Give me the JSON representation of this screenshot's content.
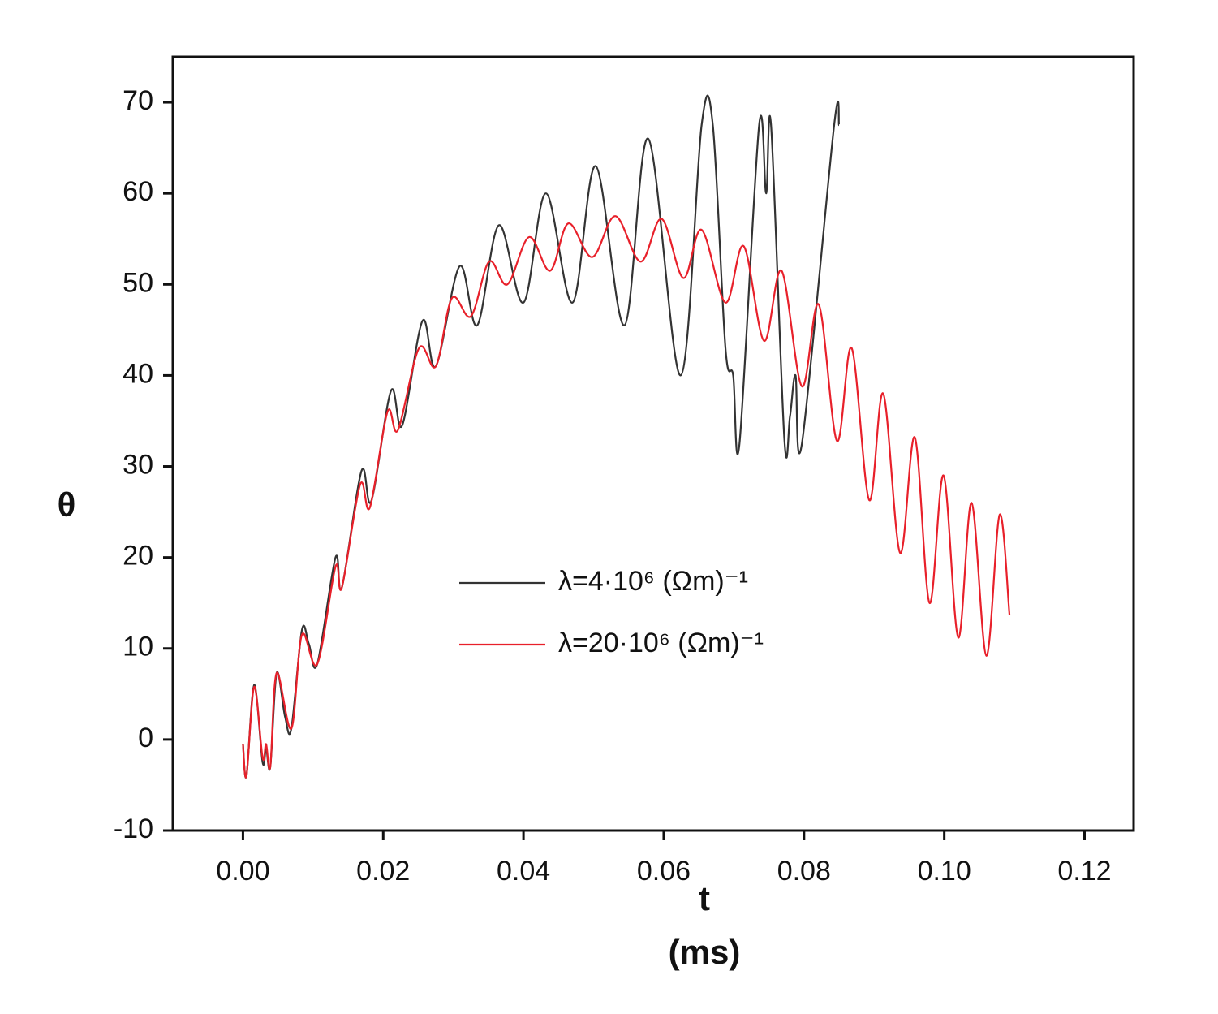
{
  "chart_data": {
    "type": "line",
    "x_label": "t",
    "x_unit": "(ms)",
    "y_label": "θ",
    "xlim": [
      -0.01,
      0.127
    ],
    "ylim": [
      -10,
      75
    ],
    "xticks": [
      {
        "value": 0,
        "label": "0.00"
      },
      {
        "value": 0.02,
        "label": "0.02"
      },
      {
        "value": 0.04,
        "label": "0.04"
      },
      {
        "value": 0.06,
        "label": "0.06"
      },
      {
        "value": 0.08,
        "label": "0.08"
      },
      {
        "value": 0.1,
        "label": "0.10"
      },
      {
        "value": 0.12,
        "label": "0.12"
      }
    ],
    "yticks": [
      -10,
      0,
      10,
      20,
      30,
      40,
      50,
      60,
      70
    ],
    "grid": false,
    "legend": "center",
    "series": [
      {
        "name": "λ=4·10⁶ (Ωm)⁻¹",
        "color": "#333333",
        "x": [
          0,
          0.0005,
          0.0016,
          0.0028,
          0.0033,
          0.0039,
          0.0048,
          0.006,
          0.0069,
          0.0084,
          0.0094,
          0.0106,
          0.0132,
          0.0141,
          0.0169,
          0.0183,
          0.0211,
          0.0227,
          0.0256,
          0.0275,
          0.0309,
          0.0334,
          0.0365,
          0.04,
          0.0432,
          0.047,
          0.0503,
          0.0544,
          0.0578,
          0.0624,
          0.0654,
          0.067,
          0.0688,
          0.0699,
          0.0708,
          0.0736,
          0.0746,
          0.0753,
          0.0772,
          0.078,
          0.0788,
          0.0797,
          0.0843,
          0.085
        ],
        "values": [
          -0.5,
          -4,
          6,
          -2.5,
          -1,
          -3,
          7.3,
          2.5,
          1.2,
          12,
          10.5,
          8.3,
          20,
          16.7,
          29.5,
          26.2,
          38.3,
          34.5,
          46,
          41,
          52,
          45.5,
          56.5,
          48,
          60,
          48,
          63,
          45.5,
          66,
          40,
          67.5,
          67.5,
          43,
          40,
          32.5,
          67.5,
          60,
          67.5,
          33,
          35.5,
          40,
          32.5,
          67.5,
          67.5
        ]
      },
      {
        "name": "λ=20·10⁶ (Ωm)⁻¹",
        "color": "#e8202a",
        "x": [
          0,
          0.0005,
          0.0016,
          0.0028,
          0.0033,
          0.0039,
          0.0048,
          0.0069,
          0.0084,
          0.0106,
          0.0132,
          0.0141,
          0.0167,
          0.0181,
          0.0206,
          0.0221,
          0.0251,
          0.0275,
          0.0298,
          0.0325,
          0.0351,
          0.0377,
          0.0408,
          0.0438,
          0.0464,
          0.0498,
          0.0531,
          0.0567,
          0.0597,
          0.0628,
          0.0654,
          0.0688,
          0.0714,
          0.0743,
          0.0768,
          0.0797,
          0.0821,
          0.0847,
          0.0868,
          0.0893,
          0.0913,
          0.0937,
          0.0958,
          0.0979,
          0.0999,
          0.102,
          0.1039,
          0.106,
          0.1079,
          0.1093
        ],
        "values": [
          -0.5,
          -4,
          5.8,
          -2,
          -0.5,
          -3,
          7.3,
          1.2,
          11.5,
          8.3,
          19,
          16.7,
          28,
          25.5,
          36,
          34,
          43,
          41,
          48.5,
          46.5,
          52.5,
          50,
          55.2,
          51.5,
          56.7,
          53,
          57.5,
          52.5,
          57.2,
          50.7,
          56,
          48,
          54.2,
          43.8,
          51.5,
          38.8,
          47.8,
          32.8,
          43,
          26.3,
          38,
          20.5,
          33.2,
          15,
          29,
          11.2,
          26,
          9.2,
          24.7,
          13.7
        ]
      }
    ]
  }
}
